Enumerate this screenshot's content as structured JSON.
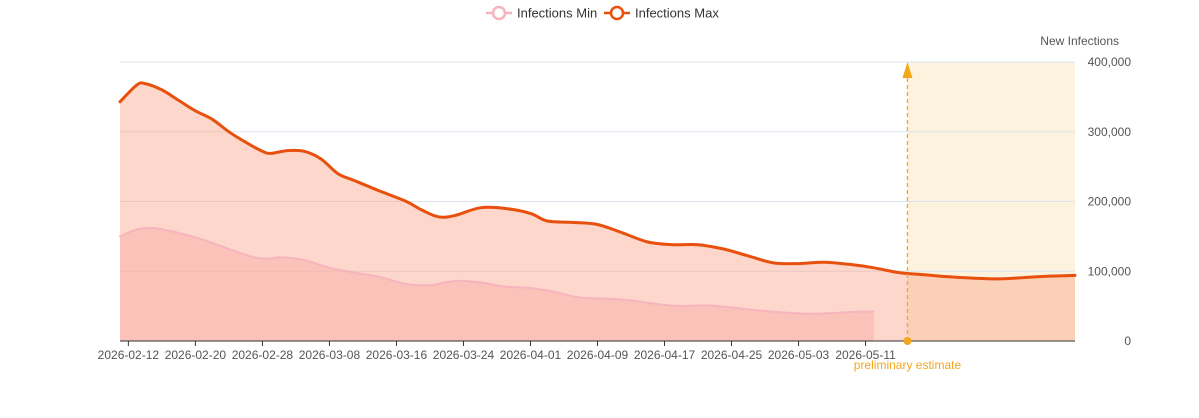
{
  "chart_data": {
    "type": "area",
    "x": [
      "2026-02-12",
      "2026-02-20",
      "2026-02-28",
      "2026-03-08",
      "2026-03-16",
      "2026-03-24",
      "2026-04-01",
      "2026-04-09",
      "2026-04-17",
      "2026-04-25",
      "2026-05-03",
      "2026-05-11"
    ],
    "series": [
      {
        "name": "Infections Min",
        "color": "#f7b4bf",
        "points": [
          [
            "2026-02-11",
            150000
          ],
          [
            "2026-02-13",
            160000
          ],
          [
            "2026-02-15",
            162000
          ],
          [
            "2026-02-18",
            155000
          ],
          [
            "2026-02-21",
            145000
          ],
          [
            "2026-02-24",
            132000
          ],
          [
            "2026-02-27",
            120000
          ],
          [
            "2026-02-29",
            118000
          ],
          [
            "2026-03-02",
            120000
          ],
          [
            "2026-03-05",
            116000
          ],
          [
            "2026-03-08",
            105000
          ],
          [
            "2026-03-11",
            98000
          ],
          [
            "2026-03-14",
            92000
          ],
          [
            "2026-03-17",
            82000
          ],
          [
            "2026-03-20",
            80000
          ],
          [
            "2026-03-23",
            86000
          ],
          [
            "2026-03-26",
            84000
          ],
          [
            "2026-03-29",
            78000
          ],
          [
            "2026-04-01",
            76000
          ],
          [
            "2026-04-04",
            70000
          ],
          [
            "2026-04-07",
            62000
          ],
          [
            "2026-04-10",
            61000
          ],
          [
            "2026-04-13",
            58000
          ],
          [
            "2026-04-16",
            53000
          ],
          [
            "2026-04-19",
            50000
          ],
          [
            "2026-04-22",
            51000
          ],
          [
            "2026-04-25",
            48000
          ],
          [
            "2026-04-28",
            44000
          ],
          [
            "2026-05-01",
            41000
          ],
          [
            "2026-05-04",
            39000
          ],
          [
            "2026-05-07",
            40000
          ],
          [
            "2026-05-10",
            42000
          ],
          [
            "2026-05-12",
            42000
          ]
        ]
      },
      {
        "name": "Infections Max",
        "color": "#e8500e",
        "points": [
          [
            "2026-02-11",
            343000
          ],
          [
            "2026-02-13",
            367000
          ],
          [
            "2026-02-14",
            369000
          ],
          [
            "2026-02-16",
            360000
          ],
          [
            "2026-02-18",
            345000
          ],
          [
            "2026-02-20",
            330000
          ],
          [
            "2026-02-22",
            318000
          ],
          [
            "2026-02-24",
            300000
          ],
          [
            "2026-02-26",
            285000
          ],
          [
            "2026-02-28",
            272000
          ],
          [
            "2026-03-01",
            269000
          ],
          [
            "2026-03-03",
            273000
          ],
          [
            "2026-03-05",
            272000
          ],
          [
            "2026-03-07",
            261000
          ],
          [
            "2026-03-09",
            240000
          ],
          [
            "2026-03-11",
            230000
          ],
          [
            "2026-03-14",
            215000
          ],
          [
            "2026-03-17",
            201000
          ],
          [
            "2026-03-19",
            188000
          ],
          [
            "2026-03-21",
            178000
          ],
          [
            "2026-03-23",
            180000
          ],
          [
            "2026-03-26",
            191000
          ],
          [
            "2026-03-29",
            190000
          ],
          [
            "2026-04-01",
            183000
          ],
          [
            "2026-04-03",
            172000
          ],
          [
            "2026-04-06",
            170000
          ],
          [
            "2026-04-09",
            167000
          ],
          [
            "2026-04-12",
            155000
          ],
          [
            "2026-04-15",
            142000
          ],
          [
            "2026-04-18",
            138000
          ],
          [
            "2026-04-21",
            138000
          ],
          [
            "2026-04-24",
            132000
          ],
          [
            "2026-04-27",
            122000
          ],
          [
            "2026-04-30",
            112000
          ],
          [
            "2026-05-03",
            111000
          ],
          [
            "2026-05-06",
            113000
          ],
          [
            "2026-05-09",
            110000
          ],
          [
            "2026-05-12",
            105000
          ],
          [
            "2026-05-15",
            98000
          ],
          [
            "2026-05-18",
            95000
          ],
          [
            "2026-05-21",
            92000
          ],
          [
            "2026-05-24",
            90000
          ],
          [
            "2026-05-27",
            89000
          ],
          [
            "2026-05-30",
            91000
          ],
          [
            "2026-06-02",
            93000
          ],
          [
            "2026-06-05",
            94000
          ]
        ]
      }
    ],
    "ylabel": "New Infections",
    "ylim": [
      0,
      400000
    ],
    "yticks": [
      0,
      100000,
      200000,
      300000,
      400000
    ],
    "ytick_labels": [
      "0",
      "100,000",
      "200,000",
      "300,000",
      "400,000"
    ],
    "xlim": [
      "2026-02-11",
      "2026-06-05"
    ],
    "annotation": {
      "date": "2026-05-16",
      "label": "preliminary estimate",
      "color": "#f2a81d"
    },
    "shaded_region": {
      "from": "2026-05-16",
      "to": "2026-06-05",
      "color": "#fdf2dd"
    },
    "legend_position": "top-center",
    "grid": true
  }
}
